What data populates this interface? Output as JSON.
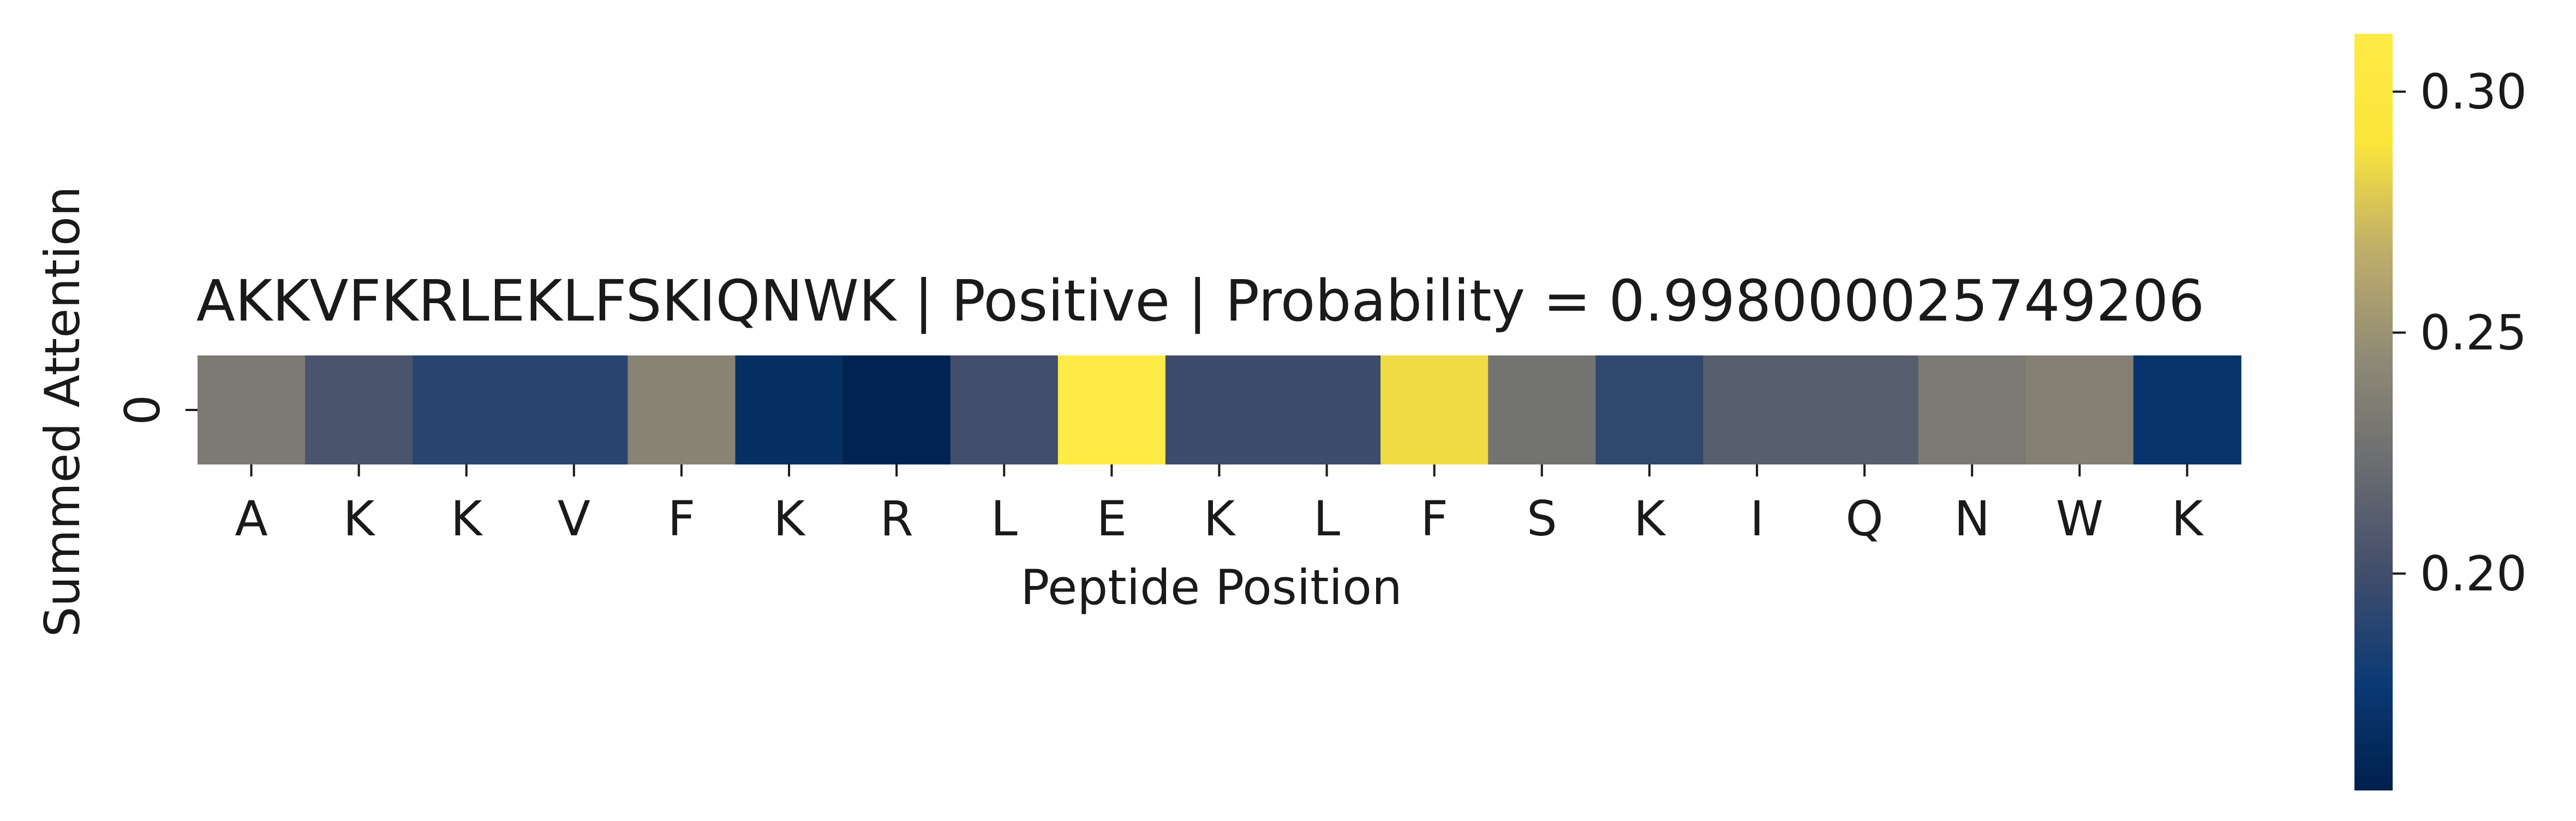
{
  "chart_data": {
    "type": "heatmap",
    "title": "AKKVFKRLEKLFSKIQNWK | Positive | Probability = 0.998000025749206",
    "xlabel": "Peptide Position",
    "ylabel": "Summed Attention",
    "x_tick_labels": [
      "A",
      "K",
      "K",
      "V",
      "F",
      "K",
      "R",
      "L",
      "E",
      "K",
      "L",
      "F",
      "S",
      "K",
      "I",
      "Q",
      "N",
      "W",
      "K"
    ],
    "y_tick_labels": [
      "0"
    ],
    "values": [
      [
        0.233,
        0.205,
        0.19,
        0.19,
        0.24,
        0.168,
        0.158,
        0.2,
        0.312,
        0.198,
        0.198,
        0.285,
        0.228,
        0.193,
        0.212,
        0.212,
        0.232,
        0.238,
        0.172
      ]
    ],
    "colormap": "cividis",
    "colormap_stops": [
      "#00204c",
      "#0b3a75",
      "#414d6b",
      "#6a6c70",
      "#8f8a76",
      "#bfae6a",
      "#fbe63a",
      "#ffea46"
    ],
    "colorbar": {
      "range": [
        0.155,
        0.312
      ],
      "ticks": [
        0.2,
        0.25,
        0.3
      ],
      "tick_labels": [
        "0.20",
        "0.25",
        "0.30"
      ]
    },
    "grid": false,
    "legend": "colorbar-right"
  }
}
